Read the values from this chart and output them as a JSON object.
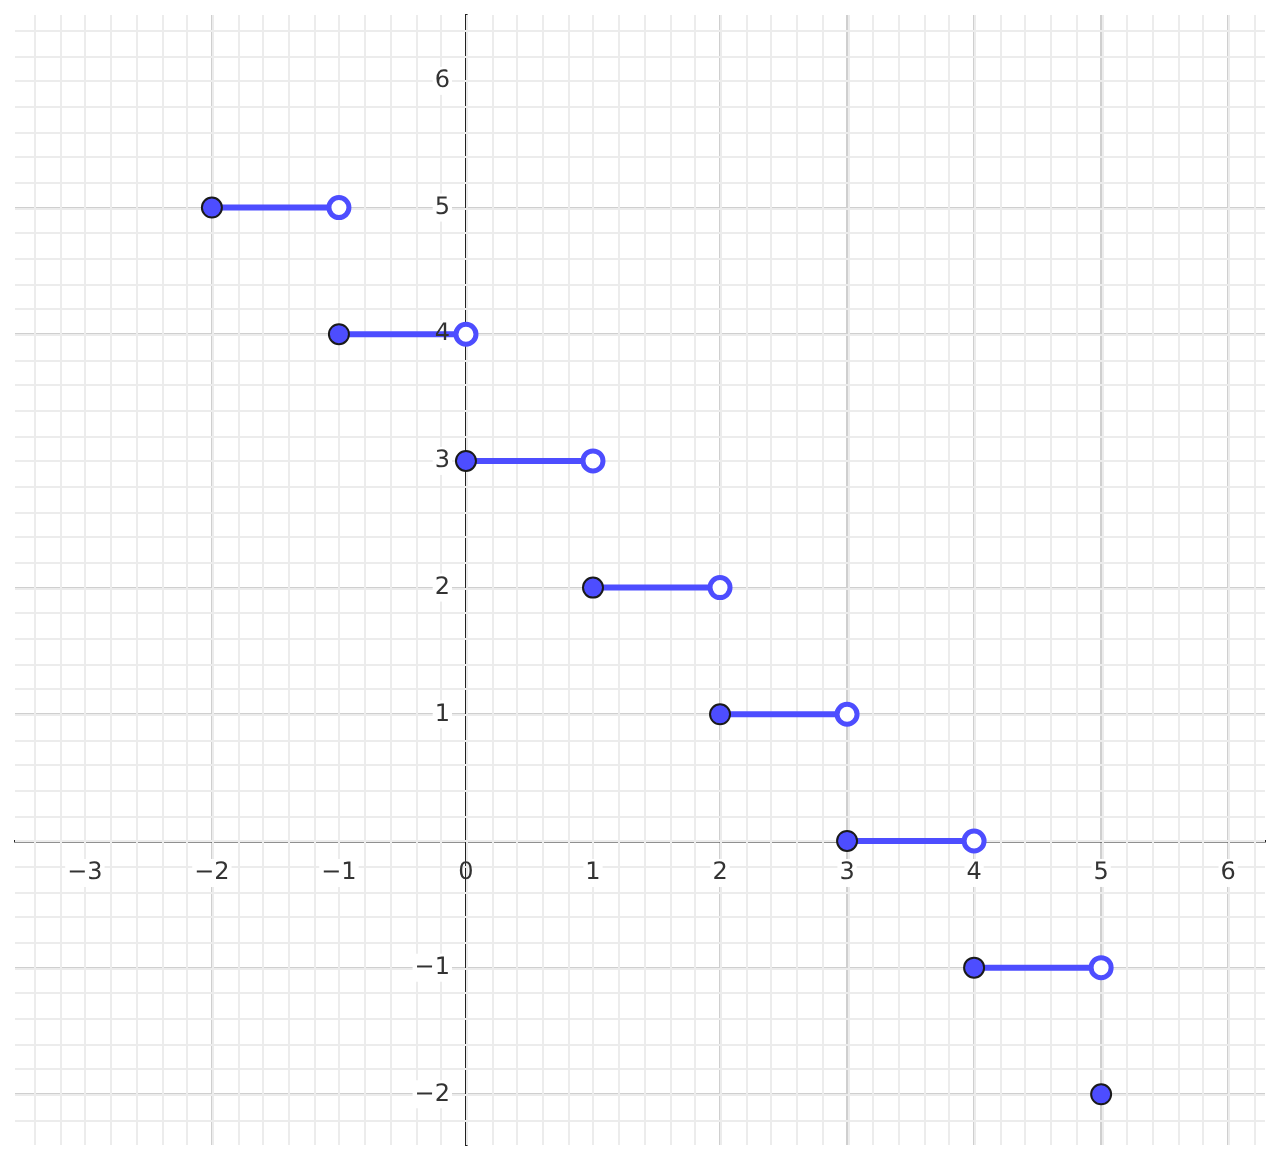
{
  "chart_data": {
    "type": "line",
    "xlim": [
      -3.55,
      6.29
    ],
    "ylim": [
      -2.4,
      6.52
    ],
    "xticks": [
      -3,
      -2,
      -1,
      0,
      1,
      2,
      3,
      4,
      5,
      6
    ],
    "yticks": [
      -2,
      -1,
      {
        "value": 0,
        "label": null
      },
      1,
      2,
      3,
      4,
      5,
      6
    ],
    "grid": true,
    "legend": false,
    "series": [
      {
        "type": "line",
        "color": "#4d4dff",
        "x": [
          -2,
          -1
        ],
        "values": [
          5,
          5
        ]
      },
      {
        "type": "line",
        "color": "#4d4dff",
        "x": [
          -1,
          0
        ],
        "values": [
          4,
          4
        ]
      },
      {
        "type": "line",
        "color": "#4d4dff",
        "x": [
          0,
          1
        ],
        "values": [
          3,
          3
        ]
      },
      {
        "type": "line",
        "color": "#4d4dff",
        "x": [
          1,
          2
        ],
        "values": [
          2,
          2
        ]
      },
      {
        "type": "line",
        "color": "#4d4dff",
        "x": [
          2,
          3
        ],
        "values": [
          1,
          1
        ]
      },
      {
        "type": "line",
        "color": "#4d4dff",
        "x": [
          3,
          4
        ],
        "values": [
          0,
          0
        ]
      },
      {
        "type": "line",
        "color": "#4d4dff",
        "x": [
          4,
          5
        ],
        "values": [
          -1,
          -1
        ]
      },
      {
        "type": "scatter",
        "color": "#4d4dff",
        "marker": "circle",
        "x": [
          -2,
          -1,
          0,
          1,
          2,
          3,
          4,
          5
        ],
        "values": [
          5,
          4,
          3,
          2,
          1,
          0,
          -1,
          -2
        ]
      },
      {
        "type": "scatter",
        "color": "#4d4dff",
        "marker": "circle",
        "x": [
          -1,
          0,
          1,
          2,
          3,
          4,
          5
        ],
        "values": [
          5,
          4,
          3,
          2,
          1,
          0,
          -1
        ]
      }
    ]
  }
}
